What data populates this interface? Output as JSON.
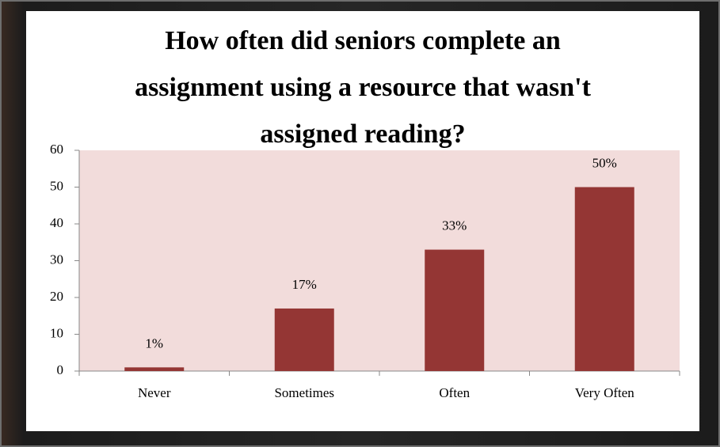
{
  "chart_data": {
    "type": "bar",
    "title": "How often did seniors complete an assignment using a resource that wasn't assigned reading?",
    "categories": [
      "Never",
      "Sometimes",
      "Often",
      "Very Often"
    ],
    "values": [
      1,
      17,
      33,
      50
    ],
    "value_labels": [
      "1%",
      "17%",
      "33%",
      "50%"
    ],
    "color": "#943634",
    "ylim": [
      0,
      60
    ],
    "yticks": [
      0,
      10,
      20,
      30,
      40,
      50,
      60
    ]
  }
}
